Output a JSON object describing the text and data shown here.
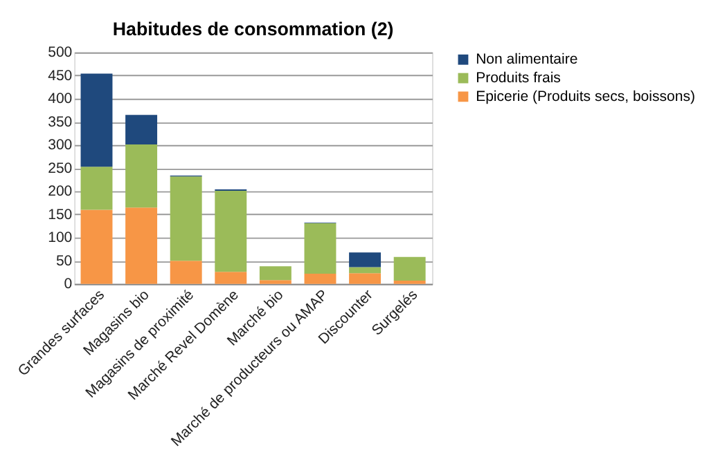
{
  "chart_data": {
    "type": "bar",
    "title": "Habitudes de consommation (2)",
    "stacked": true,
    "categories": [
      "Grandes surfaces",
      "Magasins bio",
      "Magasins de proximité",
      "Marché Revel Domène",
      "Marché bio",
      "Marché de producteurs ou AMAP",
      "Discounter",
      "Surgelés"
    ],
    "series": [
      {
        "name": "Epicerie (Produits secs, boissons)",
        "color": "#f79646",
        "values": [
          160,
          165,
          50,
          26,
          8,
          22,
          23,
          7
        ]
      },
      {
        "name": "Produits frais",
        "color": "#9bbb59",
        "values": [
          93,
          136,
          182,
          175,
          30,
          109,
          13,
          51
        ]
      },
      {
        "name": "Non alimentaire",
        "color": "#1f497d",
        "values": [
          201,
          64,
          2,
          3,
          null,
          1,
          32,
          null
        ]
      }
    ],
    "ylim": [
      0,
      500
    ],
    "yticks": [
      0,
      50,
      100,
      150,
      200,
      250,
      300,
      350,
      400,
      450,
      500
    ],
    "grid": "y",
    "legend": "right"
  }
}
